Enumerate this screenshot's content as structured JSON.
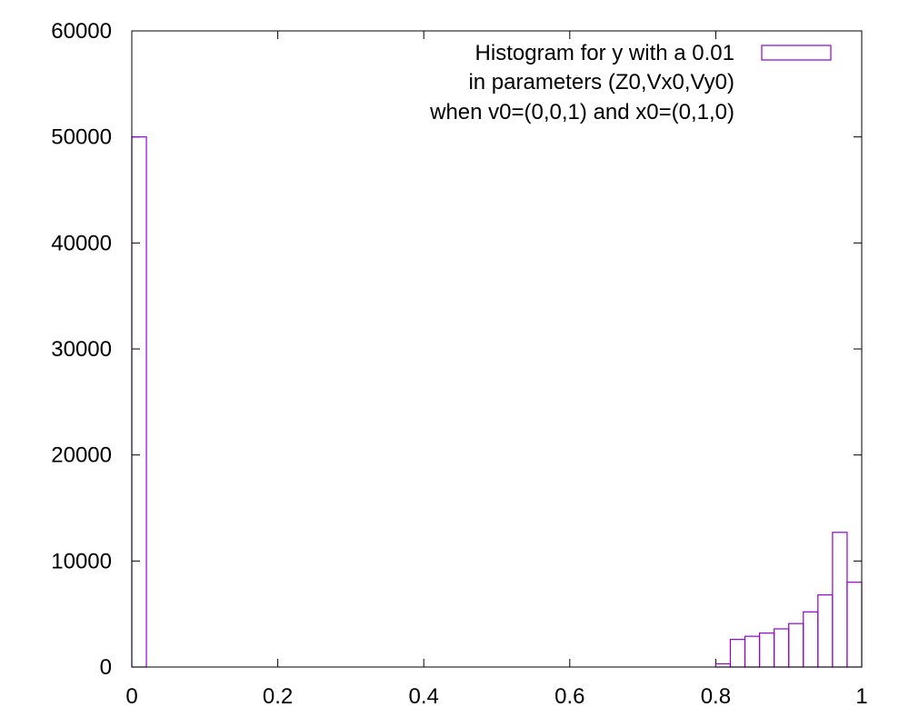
{
  "chart_data": {
    "type": "bar",
    "title": "",
    "xlabel": "",
    "ylabel": "",
    "xlim": [
      0,
      1
    ],
    "ylim": [
      0,
      60000
    ],
    "x_ticks": [
      "0",
      "0.2",
      "0.4",
      "0.6",
      "0.8",
      "1"
    ],
    "y_ticks": [
      "0",
      "10000",
      "20000",
      "30000",
      "40000",
      "50000",
      "60000"
    ],
    "grid": false,
    "legend": {
      "placement": "top-right",
      "lines": [
        "Histogram for y with a 0.01",
        "in parameters (Z0,Vx0,Vy0)",
        "when v0=(0,0,1) and x0=(0,1,0)"
      ]
    },
    "series": [
      {
        "color": "#9400d3",
        "bins": [
          {
            "x0": 0.0,
            "x1": 0.02,
            "value": 50000
          },
          {
            "x0": 0.8,
            "x1": 0.82,
            "value": 300
          },
          {
            "x0": 0.82,
            "x1": 0.84,
            "value": 2600
          },
          {
            "x0": 0.84,
            "x1": 0.86,
            "value": 2900
          },
          {
            "x0": 0.86,
            "x1": 0.88,
            "value": 3200
          },
          {
            "x0": 0.88,
            "x1": 0.9,
            "value": 3600
          },
          {
            "x0": 0.9,
            "x1": 0.92,
            "value": 4100
          },
          {
            "x0": 0.92,
            "x1": 0.94,
            "value": 5200
          },
          {
            "x0": 0.94,
            "x1": 0.96,
            "value": 6800
          },
          {
            "x0": 0.96,
            "x1": 0.98,
            "value": 12700
          },
          {
            "x0": 0.98,
            "x1": 1.0,
            "value": 8000
          }
        ]
      }
    ]
  }
}
